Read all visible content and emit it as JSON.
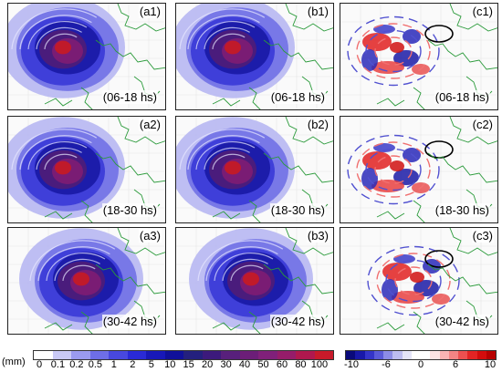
{
  "panels": [
    {
      "label": "(a1)",
      "period": "(06-18 hs)",
      "kind": "rain"
    },
    {
      "label": "(b1)",
      "period": "(06-18 hs)",
      "kind": "rain"
    },
    {
      "label": "(c1)",
      "period": "(06-18 hs)",
      "kind": "diff"
    },
    {
      "label": "(a2)",
      "period": "(18-30 hs)",
      "kind": "rain"
    },
    {
      "label": "(b2)",
      "period": "(18-30 hs)",
      "kind": "rain"
    },
    {
      "label": "(c2)",
      "period": "(18-30 hs)",
      "kind": "diff"
    },
    {
      "label": "(a3)",
      "period": "(30-42 hs)",
      "kind": "rain"
    },
    {
      "label": "(b3)",
      "period": "(30-42 hs)",
      "kind": "rain"
    },
    {
      "label": "(c3)",
      "period": "(30-42 hs)",
      "kind": "diff"
    }
  ],
  "colorbar_rain": {
    "unit": "(mm)",
    "ticks": [
      "0",
      "0.1",
      "0.2",
      "0.5",
      "1",
      "2",
      "5",
      "10",
      "15",
      "20",
      "30",
      "40",
      "50",
      "60",
      "80",
      "100"
    ],
    "colors": [
      "#ffffff",
      "#c9c9f5",
      "#9a9aef",
      "#6e6ee6",
      "#4848de",
      "#2a2ad6",
      "#1818b8",
      "#10109a",
      "#24207e",
      "#3c1a7c",
      "#58207c",
      "#6c1e78",
      "#80207a",
      "#961c6a",
      "#b0184e",
      "#c81a2a"
    ]
  },
  "colorbar_diff": {
    "ticks": [
      "-10",
      "-6",
      "0",
      "6",
      "10"
    ],
    "colors": [
      "#0a0a7a",
      "#1818a8",
      "#3434c8",
      "#5a5ad8",
      "#8c8ce6",
      "#bcbcf0",
      "#e4e4f8",
      "#ffffff",
      "#ffffff",
      "#fde2e2",
      "#f9b4b4",
      "#f48484",
      "#ee5050",
      "#e42424",
      "#d40c0c",
      "#b80000"
    ]
  }
}
